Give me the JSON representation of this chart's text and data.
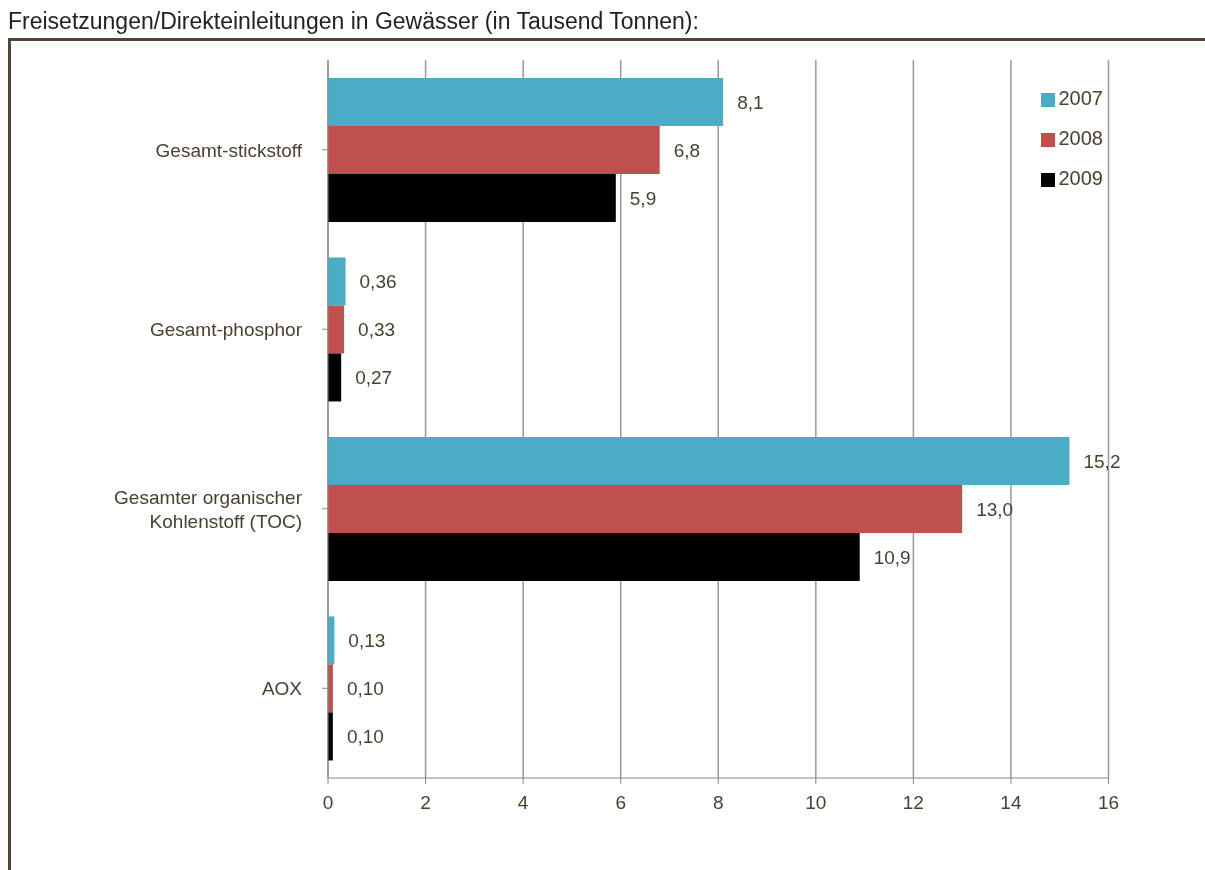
{
  "chart_data": {
    "type": "bar",
    "orientation": "horizontal",
    "title": "Freisetzungen/Direkteinleitungen in Gewässer (in Tausend Tonnen):",
    "categories": [
      "Gesamt-stickstoff",
      "Gesamt-phosphor",
      "Gesamter organischer Kohlenstoff (TOC)",
      "AOX"
    ],
    "series": [
      {
        "name": "2007",
        "color": "#4bacc6",
        "values": [
          8.1,
          0.36,
          15.2,
          0.13
        ],
        "value_labels": [
          "8,1",
          "0,36",
          "15,2",
          "0,13"
        ]
      },
      {
        "name": "2008",
        "color": "#c0504d",
        "values": [
          6.8,
          0.33,
          13.0,
          0.1
        ],
        "value_labels": [
          "6,8",
          "0,33",
          "13,0",
          "0,10"
        ]
      },
      {
        "name": "2009",
        "color": "#000000",
        "values": [
          5.9,
          0.27,
          10.9,
          0.1
        ],
        "value_labels": [
          "5,9",
          "0,27",
          "10,9",
          "0,10"
        ]
      }
    ],
    "xlim": [
      0,
      16
    ],
    "xticks": [
      0,
      2,
      4,
      6,
      8,
      10,
      12,
      14,
      16
    ],
    "grid": "x",
    "legend": "top right"
  }
}
